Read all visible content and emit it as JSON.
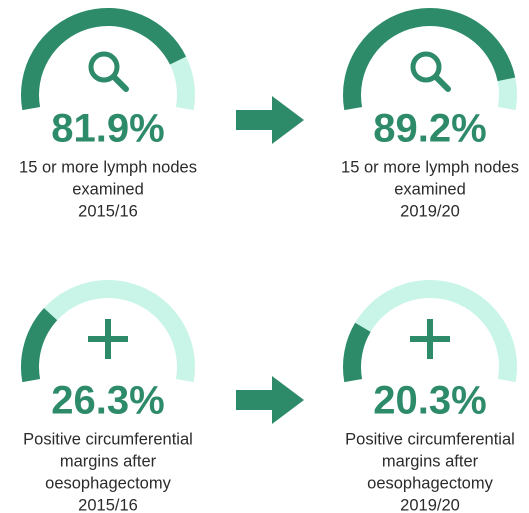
{
  "range": [
    0,
    100
  ],
  "rows": [
    {
      "panels": [
        {
          "value": 81.9,
          "value_label": "81.9%",
          "description": [
            "15 or more lymph nodes",
            "examined"
          ],
          "period": "2015/16"
        },
        {
          "value": 89.2,
          "value_label": "89.2%",
          "description": [
            "15 or more lymph nodes",
            "examined"
          ],
          "period": "2019/20"
        }
      ]
    },
    {
      "panels": [
        {
          "value": 26.3,
          "value_label": "26.3%",
          "description": [
            "Positive circumferential",
            "margins after",
            "oesophagectomy"
          ],
          "period": "2015/16"
        },
        {
          "value": 20.3,
          "value_label": "20.3%",
          "description": [
            "Positive circumferential",
            "margins after",
            "oesophagectomy"
          ],
          "period": "2019/20"
        }
      ]
    }
  ]
}
